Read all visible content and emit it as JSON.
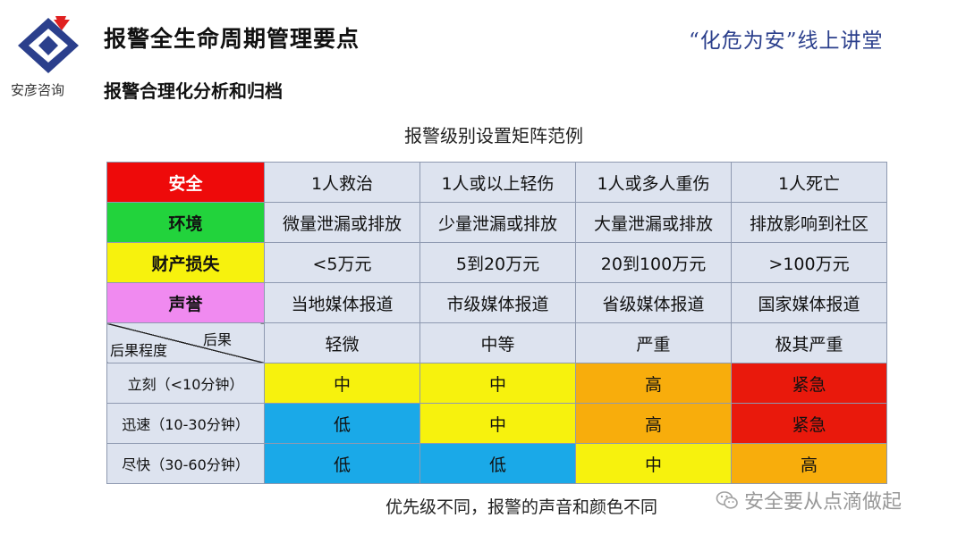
{
  "header": {
    "logo_text": "安彦咨询",
    "title": "报警全生命周期管理要点",
    "subtitle": "报警合理化分析和归档",
    "slogan": "“化危为安”线上讲堂"
  },
  "caption": "报警级别设置矩阵范例",
  "matrix": {
    "consequence_rows": [
      {
        "category": "安全",
        "cells": [
          "1人救治",
          "1人或以上轻伤",
          "1人或多人重伤",
          "1人死亡"
        ]
      },
      {
        "category": "环境",
        "cells": [
          "微量泄漏或排放",
          "少量泄漏或排放",
          "大量泄漏或排放",
          "排放影响到社区"
        ]
      },
      {
        "category": "财产损失",
        "cells": [
          "<5万元",
          "5到20万元",
          "20到100万元",
          ">100万元"
        ]
      },
      {
        "category": "声誉",
        "cells": [
          "当地媒体报道",
          "市级媒体报道",
          "省级媒体报道",
          "国家媒体报道"
        ]
      }
    ],
    "header_row": {
      "diag_top": "后果",
      "diag_bottom": "后果程度",
      "severities": [
        "轻微",
        "中等",
        "严重",
        "极其严重"
      ]
    },
    "priority_rows": [
      {
        "urgency": "立刻（<10分钟）",
        "cells": [
          "中",
          "中",
          "高",
          "紧急"
        ]
      },
      {
        "urgency": "迅速（10-30分钟）",
        "cells": [
          "低",
          "中",
          "高",
          "紧急"
        ]
      },
      {
        "urgency": "尽快（30-60分钟）",
        "cells": [
          "低",
          "低",
          "中",
          "高"
        ]
      }
    ]
  },
  "colors": {
    "safety": "#ee0a0a",
    "environment": "#22d33c",
    "property": "#f7f20d",
    "reputation": "#f08af0",
    "priority_low": "#1aa9e8",
    "priority_mid": "#f7f20d",
    "priority_high": "#f8ad0c",
    "priority_urgent": "#e9190c",
    "brand_blue": "#2b3f8c"
  },
  "footer": "优先级不同，报警的声音和颜色不同",
  "watermark": {
    "icon": "wechat-icon",
    "text": "安全要从点滴做起"
  }
}
